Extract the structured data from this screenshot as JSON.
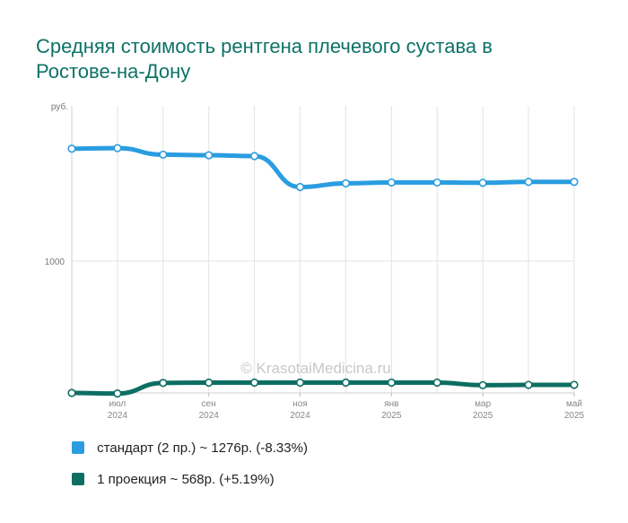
{
  "title": "Средняя стоимость рентгена плечевого сустава в Ростове-на-Дону",
  "watermark": "© KrasotaiMedicina.ru",
  "chart_data": {
    "type": "line",
    "y_unit": "руб.",
    "y_tick": "1000",
    "x": [
      "2024-06",
      "2024-07",
      "2024-08",
      "2024-09",
      "2024-10",
      "2024-11",
      "2024-12",
      "2025-01",
      "2025-02",
      "2025-03",
      "2025-04",
      "2025-05"
    ],
    "x_ticks": [
      {
        "month": "июл",
        "year": "2024",
        "index": 1
      },
      {
        "month": "сен",
        "year": "2024",
        "index": 3
      },
      {
        "month": "ноя",
        "year": "2024",
        "index": 5
      },
      {
        "month": "янв",
        "year": "2025",
        "index": 7
      },
      {
        "month": "мар",
        "year": "2025",
        "index": 9
      },
      {
        "month": "май",
        "year": "2025",
        "index": 11
      }
    ],
    "ylim": [
      540,
      1510
    ],
    "grid": true,
    "series": [
      {
        "name": "стандарт (2 пр.)",
        "legend": "стандарт (2 пр.) ~ 1276р. (-8.33%)",
        "color": "#2a9de0",
        "values": [
          1392,
          1394,
          1371,
          1369,
          1366,
          1258,
          1271,
          1274,
          1274,
          1273,
          1276,
          1276
        ]
      },
      {
        "name": "1 проекция",
        "legend": "1 проекция ~ 568р. (+5.19%)",
        "color": "#0d6e62",
        "values": [
          540,
          538,
          575,
          576,
          576,
          576,
          576,
          576,
          576,
          567,
          568,
          568
        ]
      }
    ]
  }
}
